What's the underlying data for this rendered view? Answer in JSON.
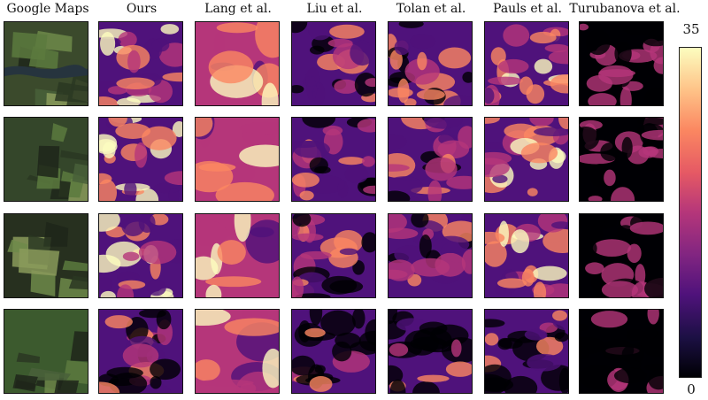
{
  "columns": [
    "Google Maps",
    "Ours",
    "Lang et al.",
    "Liu et al.",
    "Tolan et al.",
    "Pauls et al.",
    "Turubanova et al."
  ],
  "rows": [
    {
      "terrain": "river-valley"
    },
    {
      "terrain": "forest-fields"
    },
    {
      "terrain": "hill-forest"
    },
    {
      "terrain": "patchwork-fields"
    }
  ],
  "colorbar": {
    "max_label": "35",
    "min_label": "0",
    "colormap": "magma"
  },
  "colors": {
    "magma_dark": "#000004",
    "magma_purple": "#4f127b",
    "magma_magenta": "#b5367a",
    "magma_orange": "#fb8761",
    "magma_light": "#fcfdbf",
    "satellite_dark": "#1f2a1f",
    "satellite_green": "#4d6a3a"
  }
}
